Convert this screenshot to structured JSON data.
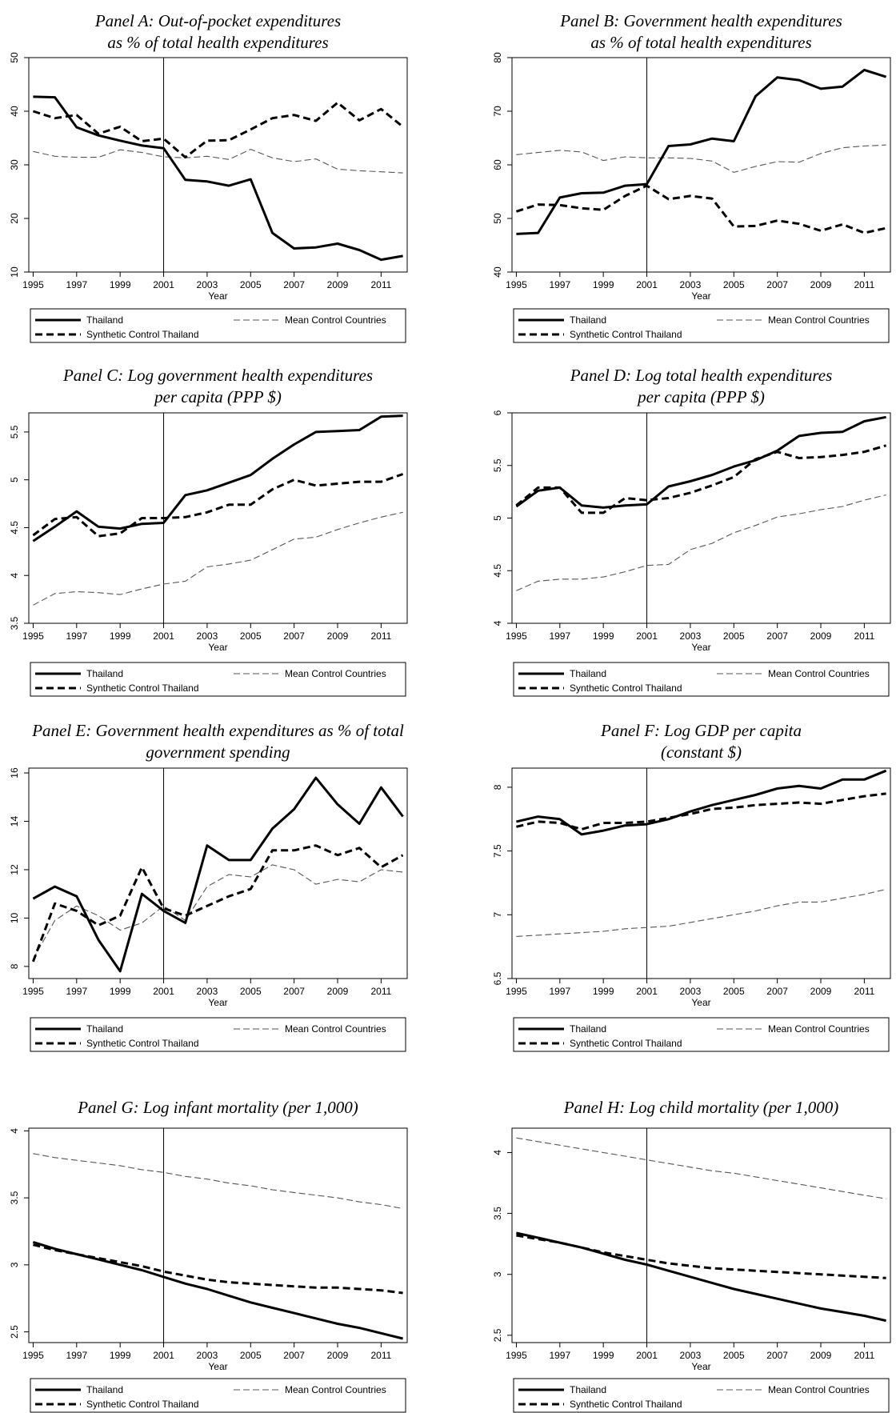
{
  "xlabel": "Year",
  "x_ticks": [
    1995,
    1997,
    1999,
    2001,
    2003,
    2005,
    2007,
    2009,
    2011
  ],
  "intervention_year": 2001,
  "legend": {
    "thailand": "Thailand",
    "synthetic": "Synthetic Control Thailand",
    "mean_control": "Mean Control Countries"
  },
  "chart_data": [
    {
      "type": "line",
      "title": [
        "Panel A: Out-of-pocket expenditures",
        "as % of total health expenditures"
      ],
      "ylim": [
        10,
        50
      ],
      "yticks": [
        10,
        20,
        30,
        40,
        50
      ],
      "x": [
        1995,
        1996,
        1997,
        1998,
        1999,
        2000,
        2001,
        2002,
        2003,
        2004,
        2005,
        2006,
        2007,
        2008,
        2009,
        2010,
        2011,
        2012
      ],
      "series": [
        {
          "name": "Thailand",
          "style": "solid",
          "values": [
            42.7,
            42.6,
            37.0,
            35.5,
            34.5,
            33.6,
            33.1,
            27.2,
            26.9,
            26.1,
            27.3,
            17.3,
            14.4,
            14.6,
            15.3,
            14.1,
            12.3,
            13.0
          ]
        },
        {
          "name": "Synthetic Control Thailand",
          "style": "dashed",
          "values": [
            40.0,
            38.7,
            39.3,
            35.8,
            37.1,
            34.4,
            34.9,
            31.4,
            34.5,
            34.6,
            36.6,
            38.7,
            39.3,
            38.2,
            41.6,
            38.3,
            40.4,
            37.1
          ]
        },
        {
          "name": "Mean Control Countries",
          "style": "thin",
          "values": [
            32.5,
            31.6,
            31.4,
            31.4,
            32.8,
            32.3,
            31.5,
            31.3,
            31.6,
            31.0,
            32.9,
            31.3,
            30.6,
            31.1,
            29.2,
            28.9,
            28.7,
            28.5
          ]
        }
      ]
    },
    {
      "type": "line",
      "title": [
        "Panel B: Government health expenditures",
        "as % of total health expenditures"
      ],
      "ylim": [
        40,
        80
      ],
      "yticks": [
        40,
        50,
        60,
        70,
        80
      ],
      "x": [
        1995,
        1996,
        1997,
        1998,
        1999,
        2000,
        2001,
        2002,
        2003,
        2004,
        2005,
        2006,
        2007,
        2008,
        2009,
        2010,
        2011,
        2012
      ],
      "series": [
        {
          "name": "Thailand",
          "style": "solid",
          "values": [
            47.1,
            47.3,
            53.9,
            54.7,
            54.8,
            56.1,
            56.4,
            63.5,
            63.8,
            64.9,
            64.4,
            72.8,
            76.3,
            75.8,
            74.2,
            74.6,
            77.7,
            76.4
          ]
        },
        {
          "name": "Synthetic Control Thailand",
          "style": "dashed",
          "values": [
            51.3,
            52.6,
            52.5,
            51.9,
            51.6,
            54.2,
            56.1,
            53.6,
            54.2,
            53.7,
            48.5,
            48.6,
            49.6,
            49.0,
            47.7,
            48.9,
            47.3,
            48.2
          ]
        },
        {
          "name": "Mean Control Countries",
          "style": "thin",
          "values": [
            61.9,
            62.3,
            62.7,
            62.4,
            60.8,
            61.5,
            61.3,
            61.3,
            61.2,
            60.7,
            58.6,
            59.7,
            60.6,
            60.5,
            62.1,
            63.2,
            63.5,
            63.7
          ]
        }
      ]
    },
    {
      "type": "line",
      "title": [
        "Panel C: Log government health expenditures",
        "per capita (PPP $)"
      ],
      "ylim": [
        3.5,
        5.7
      ],
      "yticks": [
        3.5,
        4,
        4.5,
        5,
        5.5
      ],
      "ytick_labels": [
        "3.5",
        "4",
        "4.5",
        "5",
        "5.5"
      ],
      "x": [
        1995,
        1996,
        1997,
        1998,
        1999,
        2000,
        2001,
        2002,
        2003,
        2004,
        2005,
        2006,
        2007,
        2008,
        2009,
        2010,
        2011,
        2012
      ],
      "series": [
        {
          "name": "Thailand",
          "style": "solid",
          "values": [
            4.36,
            4.51,
            4.67,
            4.51,
            4.49,
            4.54,
            4.55,
            4.84,
            4.89,
            4.97,
            5.05,
            5.22,
            5.37,
            5.5,
            5.51,
            5.52,
            5.66,
            5.67
          ]
        },
        {
          "name": "Synthetic Control Thailand",
          "style": "dashed",
          "values": [
            4.42,
            4.59,
            4.61,
            4.41,
            4.44,
            4.6,
            4.6,
            4.61,
            4.66,
            4.74,
            4.74,
            4.9,
            5.0,
            4.94,
            4.96,
            4.98,
            4.98,
            5.06
          ]
        },
        {
          "name": "Mean Control Countries",
          "style": "thin",
          "values": [
            3.69,
            3.81,
            3.83,
            3.82,
            3.8,
            3.86,
            3.91,
            3.94,
            4.09,
            4.12,
            4.16,
            4.27,
            4.38,
            4.4,
            4.48,
            4.55,
            4.61,
            4.66
          ]
        }
      ]
    },
    {
      "type": "line",
      "title": [
        "Panel D: Log total health expenditures",
        "per capita (PPP $)"
      ],
      "ylim": [
        4,
        6
      ],
      "yticks": [
        4,
        4.5,
        5,
        5.5,
        6
      ],
      "ytick_labels": [
        "4",
        "4.5",
        "5",
        "5.5",
        "6"
      ],
      "x": [
        1995,
        1996,
        1997,
        1998,
        1999,
        2000,
        2001,
        2002,
        2003,
        2004,
        2005,
        2006,
        2007,
        2008,
        2009,
        2010,
        2011,
        2012
      ],
      "series": [
        {
          "name": "Thailand",
          "style": "solid",
          "values": [
            5.11,
            5.26,
            5.29,
            5.12,
            5.1,
            5.12,
            5.13,
            5.3,
            5.35,
            5.41,
            5.49,
            5.55,
            5.64,
            5.78,
            5.81,
            5.82,
            5.92,
            5.96
          ]
        },
        {
          "name": "Synthetic Control Thailand",
          "style": "dashed",
          "values": [
            5.12,
            5.29,
            5.29,
            5.05,
            5.05,
            5.19,
            5.17,
            5.19,
            5.24,
            5.31,
            5.39,
            5.56,
            5.63,
            5.57,
            5.58,
            5.6,
            5.63,
            5.69
          ]
        },
        {
          "name": "Mean Control Countries",
          "style": "thin",
          "values": [
            4.31,
            4.4,
            4.42,
            4.42,
            4.44,
            4.49,
            4.55,
            4.56,
            4.7,
            4.76,
            4.86,
            4.93,
            5.01,
            5.04,
            5.08,
            5.11,
            5.17,
            5.22
          ]
        }
      ]
    },
    {
      "type": "line",
      "title": [
        "Panel E: Government health expenditures as % of total",
        "government spending"
      ],
      "ylim": [
        7.5,
        16.2
      ],
      "yticks": [
        8,
        10,
        12,
        14,
        16
      ],
      "x": [
        1995,
        1996,
        1997,
        1998,
        1999,
        2000,
        2001,
        2002,
        2003,
        2004,
        2005,
        2006,
        2007,
        2008,
        2009,
        2010,
        2011,
        2012
      ],
      "series": [
        {
          "name": "Thailand",
          "style": "solid",
          "values": [
            10.8,
            11.3,
            10.9,
            9.1,
            7.8,
            11.0,
            10.3,
            9.8,
            13.0,
            12.4,
            12.4,
            13.7,
            14.5,
            15.8,
            14.7,
            13.9,
            15.4,
            14.2
          ]
        },
        {
          "name": "Synthetic Control Thailand",
          "style": "dashed",
          "values": [
            8.2,
            10.6,
            10.3,
            9.7,
            10.1,
            12.1,
            10.4,
            10.1,
            10.5,
            10.9,
            11.2,
            12.8,
            12.8,
            13.0,
            12.6,
            12.9,
            12.1,
            12.6
          ]
        },
        {
          "name": "Mean Control Countries",
          "style": "thin",
          "values": [
            8.3,
            9.9,
            10.5,
            10.1,
            9.5,
            9.8,
            10.5,
            9.9,
            11.3,
            11.8,
            11.7,
            12.2,
            12.0,
            11.4,
            11.6,
            11.5,
            12.0,
            11.9
          ]
        }
      ]
    },
    {
      "type": "line",
      "title": [
        "Panel F: Log GDP per capita",
        "(constant $)"
      ],
      "ylim": [
        6.5,
        8.15
      ],
      "yticks": [
        6.5,
        7,
        7.5,
        8
      ],
      "ytick_labels": [
        "6.5",
        "7",
        "7.5",
        "8"
      ],
      "x": [
        1995,
        1996,
        1997,
        1998,
        1999,
        2000,
        2001,
        2002,
        2003,
        2004,
        2005,
        2006,
        2007,
        2008,
        2009,
        2010,
        2011,
        2012
      ],
      "series": [
        {
          "name": "Thailand",
          "style": "solid",
          "values": [
            7.73,
            7.77,
            7.75,
            7.63,
            7.66,
            7.7,
            7.71,
            7.75,
            7.81,
            7.86,
            7.9,
            7.94,
            7.99,
            8.01,
            7.99,
            8.06,
            8.06,
            8.13
          ]
        },
        {
          "name": "Synthetic Control Thailand",
          "style": "dashed",
          "values": [
            7.69,
            7.73,
            7.72,
            7.67,
            7.72,
            7.72,
            7.73,
            7.76,
            7.79,
            7.83,
            7.84,
            7.86,
            7.87,
            7.88,
            7.87,
            7.9,
            7.93,
            7.95
          ]
        },
        {
          "name": "Mean Control Countries",
          "style": "thin",
          "values": [
            6.83,
            6.84,
            6.85,
            6.86,
            6.87,
            6.89,
            6.9,
            6.91,
            6.94,
            6.97,
            7.0,
            7.03,
            7.07,
            7.1,
            7.1,
            7.13,
            7.16,
            7.2
          ]
        }
      ]
    },
    {
      "type": "line",
      "title": [
        "Panel G: Log infant mortality (per 1,000)"
      ],
      "ylim": [
        2.42,
        4.02
      ],
      "yticks": [
        2.5,
        3,
        3.5,
        4
      ],
      "ytick_labels": [
        "2.5",
        "3",
        "3.5",
        "4"
      ],
      "x": [
        1995,
        1996,
        1997,
        1998,
        1999,
        2000,
        2001,
        2002,
        2003,
        2004,
        2005,
        2006,
        2007,
        2008,
        2009,
        2010,
        2011,
        2012
      ],
      "series": [
        {
          "name": "Thailand",
          "style": "solid",
          "values": [
            3.17,
            3.12,
            3.08,
            3.04,
            3.0,
            2.96,
            2.91,
            2.86,
            2.82,
            2.77,
            2.72,
            2.68,
            2.64,
            2.6,
            2.56,
            2.53,
            2.49,
            2.45
          ]
        },
        {
          "name": "Synthetic Control Thailand",
          "style": "dashed",
          "values": [
            3.15,
            3.11,
            3.08,
            3.05,
            3.02,
            2.99,
            2.95,
            2.92,
            2.89,
            2.87,
            2.86,
            2.85,
            2.84,
            2.83,
            2.83,
            2.82,
            2.81,
            2.79
          ]
        },
        {
          "name": "Mean Control Countries",
          "style": "thin",
          "values": [
            3.83,
            3.8,
            3.78,
            3.76,
            3.74,
            3.71,
            3.69,
            3.66,
            3.64,
            3.61,
            3.59,
            3.56,
            3.54,
            3.52,
            3.5,
            3.47,
            3.45,
            3.42
          ]
        }
      ]
    },
    {
      "type": "line",
      "title": [
        "Panel H: Log child mortality (per 1,000)"
      ],
      "ylim": [
        2.44,
        4.2
      ],
      "yticks": [
        2.5,
        3,
        3.5,
        4
      ],
      "ytick_labels": [
        "2.5",
        "3",
        "3.5",
        "4"
      ],
      "x": [
        1995,
        1996,
        1997,
        1998,
        1999,
        2000,
        2001,
        2002,
        2003,
        2004,
        2005,
        2006,
        2007,
        2008,
        2009,
        2010,
        2011,
        2012
      ],
      "series": [
        {
          "name": "Thailand",
          "style": "solid",
          "values": [
            3.34,
            3.3,
            3.26,
            3.22,
            3.17,
            3.12,
            3.08,
            3.03,
            2.98,
            2.93,
            2.88,
            2.84,
            2.8,
            2.76,
            2.72,
            2.69,
            2.66,
            2.62
          ]
        },
        {
          "name": "Synthetic Control Thailand",
          "style": "dashed",
          "values": [
            3.32,
            3.29,
            3.26,
            3.22,
            3.18,
            3.15,
            3.12,
            3.09,
            3.07,
            3.05,
            3.04,
            3.03,
            3.02,
            3.01,
            3.0,
            2.99,
            2.98,
            2.97
          ]
        },
        {
          "name": "Mean Control Countries",
          "style": "thin",
          "values": [
            4.12,
            4.09,
            4.06,
            4.03,
            4.0,
            3.97,
            3.94,
            3.91,
            3.88,
            3.85,
            3.83,
            3.8,
            3.77,
            3.74,
            3.71,
            3.68,
            3.65,
            3.62
          ]
        }
      ]
    }
  ]
}
